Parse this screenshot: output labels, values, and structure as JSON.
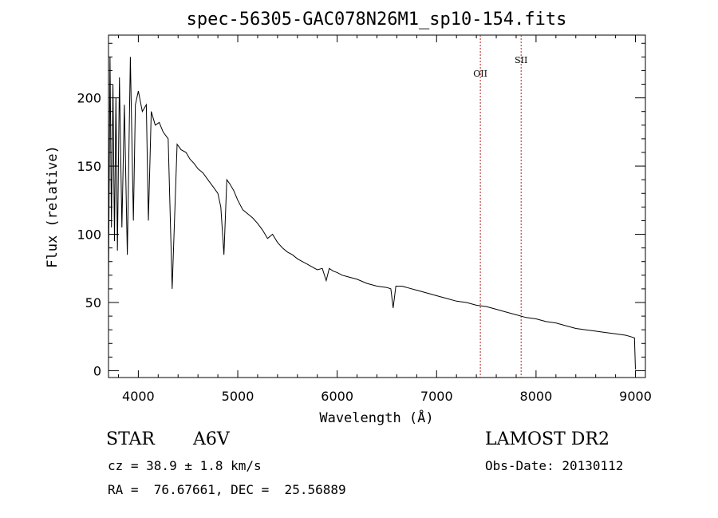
{
  "chart_data": {
    "type": "line",
    "title": "spec-56305-GAC078N26M1_sp10-154.fits",
    "xlabel": "Wavelength (Å)",
    "ylabel": "Flux (relative)",
    "xlim": [
      3700,
      9100
    ],
    "ylim": [
      -5,
      246
    ],
    "x_ticks": [
      4000,
      5000,
      6000,
      7000,
      8000,
      9000
    ],
    "y_ticks": [
      0,
      50,
      100,
      150,
      200
    ],
    "grid": false,
    "line_color": "#000000",
    "reference_line_color": "#b22222",
    "reference_lines": [
      {
        "label": "OII",
        "x": 7440
      },
      {
        "label": "SII",
        "x": 7850
      }
    ],
    "series": [
      {
        "x": [
          3700,
          3715,
          3730,
          3745,
          3760,
          3775,
          3790,
          3810,
          3835,
          3860,
          3889,
          3920,
          3950,
          3970,
          4000,
          4040,
          4080,
          4101,
          4130,
          4170,
          4210,
          4250,
          4300,
          4340,
          4390,
          4430,
          4480,
          4520,
          4560,
          4600,
          4650,
          4700,
          4750,
          4800,
          4830,
          4861,
          4890,
          4920,
          4960,
          5000,
          5050,
          5100,
          5150,
          5200,
          5250,
          5300,
          5350,
          5400,
          5450,
          5500,
          5550,
          5600,
          5650,
          5700,
          5750,
          5800,
          5850,
          5890,
          5920,
          5960,
          6000,
          6050,
          6100,
          6200,
          6300,
          6400,
          6500,
          6540,
          6563,
          6590,
          6650,
          6700,
          6800,
          6900,
          7000,
          7100,
          7200,
          7300,
          7400,
          7500,
          7600,
          7700,
          7800,
          7900,
          8000,
          8100,
          8200,
          8300,
          8400,
          8500,
          8600,
          8700,
          8800,
          8900,
          8950,
          8990,
          9000
        ],
        "y": [
          60,
          230,
          105,
          210,
          95,
          200,
          88,
          215,
          105,
          195,
          85,
          230,
          110,
          195,
          205,
          190,
          195,
          110,
          190,
          180,
          182,
          175,
          170,
          60,
          166,
          162,
          160,
          155,
          152,
          148,
          145,
          140,
          135,
          130,
          120,
          85,
          140,
          137,
          132,
          125,
          118,
          115,
          112,
          108,
          103,
          97,
          100,
          94,
          90,
          87,
          85,
          82,
          80,
          78,
          76,
          74,
          75,
          66,
          75,
          73,
          72,
          70,
          69,
          67,
          64,
          62,
          61,
          60,
          46,
          62,
          62,
          61,
          59,
          57,
          55,
          53,
          51,
          50,
          48,
          47,
          45,
          43,
          41,
          39,
          38,
          36,
          35,
          33,
          31,
          30,
          29,
          28,
          27,
          26,
          25,
          24,
          1
        ]
      }
    ]
  },
  "info": {
    "object_class": "STAR",
    "subclass": "A6V",
    "survey": "LAMOST DR2",
    "redshift": "cz = 38.9 ± 1.8 km/s",
    "obs_date": "Obs-Date: 20130112",
    "coords": "RA =  76.67661, DEC =  25.56889"
  }
}
